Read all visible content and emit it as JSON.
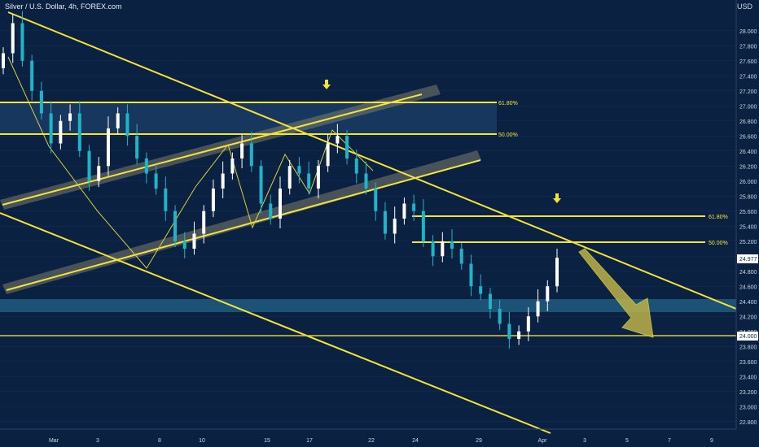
{
  "header": {
    "title": "Silver / U.S. Dollar, 4h, FOREX.com",
    "currency": "USD"
  },
  "colors": {
    "background": "#0b2142",
    "trendline": "#f5e33b",
    "bull_candle": "#ffffff",
    "bear_candle": "#1fb5c9",
    "zone": "#1e5a7e",
    "channel_band": "#8a8a7a",
    "price_label_bg": "#ffffff"
  },
  "chart_data": {
    "type": "candlestick",
    "y_axis": {
      "ticks": [
        "28.000",
        "27.800",
        "27.600",
        "27.400",
        "27.200",
        "27.000",
        "26.800",
        "26.600",
        "26.400",
        "26.200",
        "26.000",
        "25.800",
        "25.600",
        "25.400",
        "25.200",
        "25.000",
        "24.800",
        "24.600",
        "24.400",
        "24.200",
        "24.000",
        "23.800",
        "23.600",
        "23.400",
        "23.200",
        "23.000",
        "22.800"
      ],
      "range": [
        22.7,
        28.3
      ]
    },
    "x_axis": {
      "labels": [
        "Mar",
        "3",
        "8",
        "10",
        "15",
        "17",
        "22",
        "24",
        "29",
        "Apr",
        "3",
        "5",
        "7",
        "9"
      ]
    },
    "fib_levels": [
      {
        "label": "61.80%",
        "value": 27.0
      },
      {
        "label": "50.00%",
        "value": 26.58
      },
      {
        "label": "61.80%",
        "value": 25.55
      },
      {
        "label": "50.00%",
        "value": 25.2
      }
    ],
    "horizontal_levels": [
      {
        "label": "24.000",
        "value": 24.0
      }
    ],
    "current_price": "24.977",
    "support_zone": [
      24.32,
      24.48
    ],
    "resistance_zone": [
      26.6,
      27.02
    ],
    "annotations": [
      "arrow-down",
      "arrow-down",
      "projection-arrow"
    ],
    "candles_approx_close": [
      27.7,
      28.1,
      27.6,
      27.2,
      26.9,
      26.5,
      26.8,
      26.9,
      26.4,
      26.0,
      26.2,
      26.7,
      26.9,
      26.6,
      26.3,
      26.1,
      25.9,
      25.6,
      25.2,
      25.1,
      25.3,
      25.6,
      25.9,
      26.1,
      26.3,
      26.5,
      26.2,
      25.7,
      25.5,
      25.9,
      26.2,
      26.1,
      25.9,
      26.2,
      26.5,
      26.6,
      26.3,
      26.1,
      25.9,
      25.6,
      25.3,
      25.5,
      25.7,
      25.6,
      25.2,
      25.0,
      25.2,
      25.1,
      24.9,
      24.6,
      24.5,
      24.3,
      24.1,
      23.9,
      24.0,
      24.2,
      24.4,
      24.6,
      24.98
    ]
  }
}
